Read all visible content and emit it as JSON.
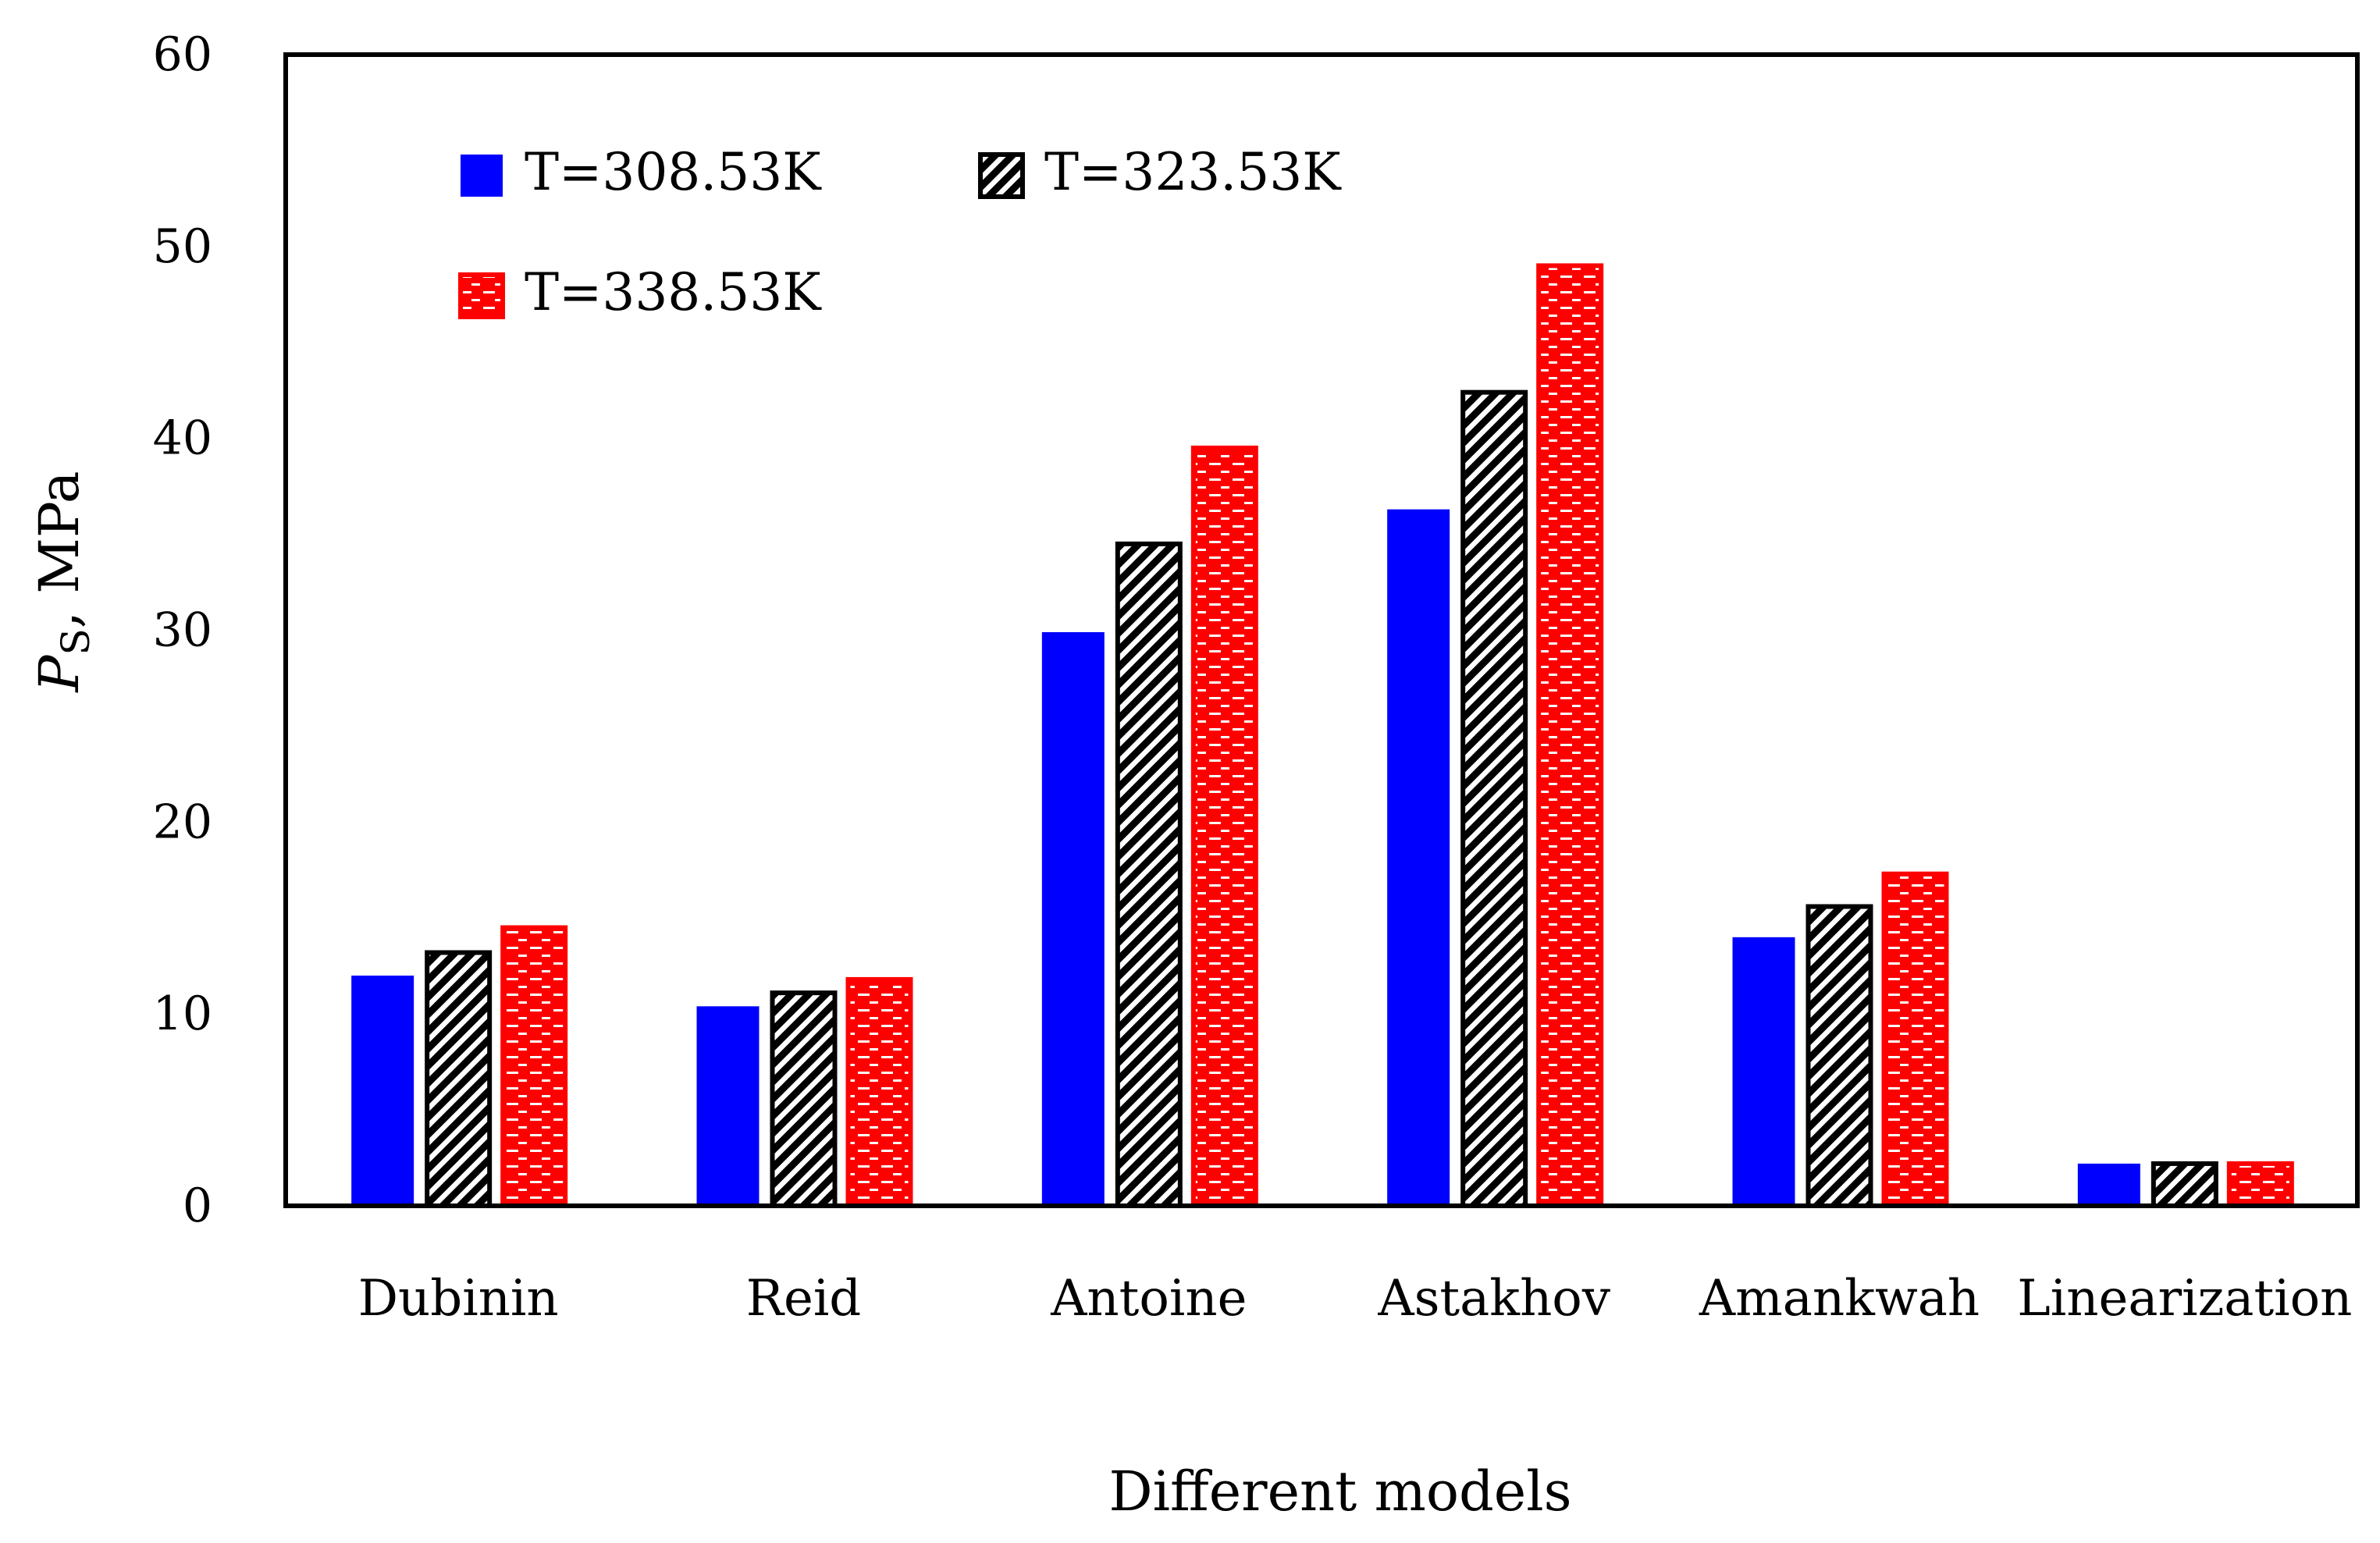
{
  "chart_data": {
    "type": "bar",
    "title": "",
    "xlabel": "Different models",
    "ylabel": {
      "symbol": "P",
      "subscript": "S",
      "unit": ", MPa"
    },
    "ylim": [
      0,
      60
    ],
    "yticks": [
      "0",
      "10",
      "20",
      "30",
      "40",
      "50",
      "60"
    ],
    "grid": false,
    "legend_position": "top-left",
    "categories": [
      "Dubinin",
      "Reid",
      "Antoine",
      "Astakhov",
      "Amankwah",
      "Linearization"
    ],
    "series": [
      {
        "name": "T=308.53K",
        "color": "#0000ff",
        "pattern": "solid",
        "values": [
          12.0,
          10.4,
          29.9,
          36.3,
          14.0,
          2.2
        ]
      },
      {
        "name": "T=323.53K",
        "color": "#000000",
        "pattern": "diagonal-hatch",
        "values": [
          13.2,
          11.1,
          34.5,
          42.4,
          15.6,
          2.2
        ]
      },
      {
        "name": "T=338.53K",
        "color": "#ff0000",
        "pattern": "brick",
        "values": [
          14.5,
          11.8,
          39.5,
          49.0,
          17.3,
          2.2
        ]
      }
    ]
  }
}
